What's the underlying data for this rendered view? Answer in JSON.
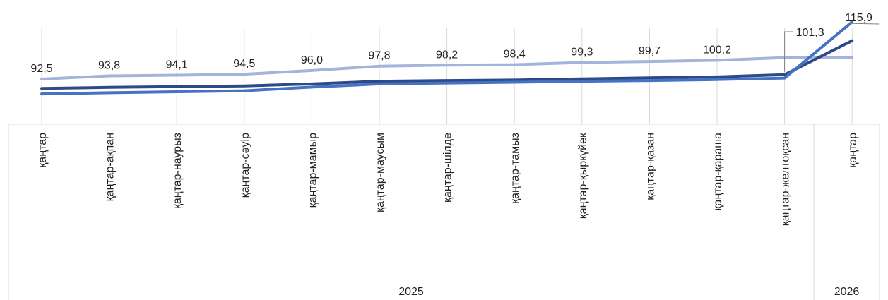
{
  "chart_data": {
    "type": "line",
    "categories": [
      "қаңтар",
      "қаңтар-ақпан",
      "қаңтар-наурыз",
      "қаңтар-сәуір",
      "қаңтар-мамыр",
      "қаңтар-маусым",
      "қаңтар-шілде",
      "қаңтар-тамыз",
      "қаңтар-қыркүйек",
      "қаңтар-қазан",
      "қаңтар-қараша",
      "қаңтар-желтоқсан",
      "қаңтар"
    ],
    "groups": [
      {
        "label": "2025",
        "span": 12
      },
      {
        "label": "2026",
        "span": 1
      }
    ],
    "series": [
      {
        "color": "#a3b4dc",
        "values": [
          92.5,
          93.8,
          94.1,
          94.5,
          96.0,
          97.8,
          98.2,
          98.4,
          99.3,
          99.7,
          100.2,
          101.3,
          101.3
        ]
      },
      {
        "color": "#2e4a86",
        "values": [
          88.7,
          89.1,
          89.4,
          89.7,
          90.5,
          91.6,
          91.9,
          92.1,
          92.6,
          93.0,
          93.4,
          94.3,
          108.2
        ]
      },
      {
        "color": "#4472c4",
        "values": [
          86.4,
          86.9,
          87.3,
          87.7,
          89.2,
          90.5,
          90.9,
          91.2,
          91.6,
          91.9,
          92.3,
          92.9,
          115.9
        ]
      }
    ],
    "data_labels": [
      "92,5",
      "93,8",
      "94,1",
      "94,5",
      "96,0",
      "97,8",
      "98,2",
      "98,4",
      "99,3",
      "99,7",
      "100,2",
      "101,3",
      "115,9"
    ],
    "ylim": [
      74,
      122
    ],
    "grid": "vertical",
    "legend": "none"
  }
}
